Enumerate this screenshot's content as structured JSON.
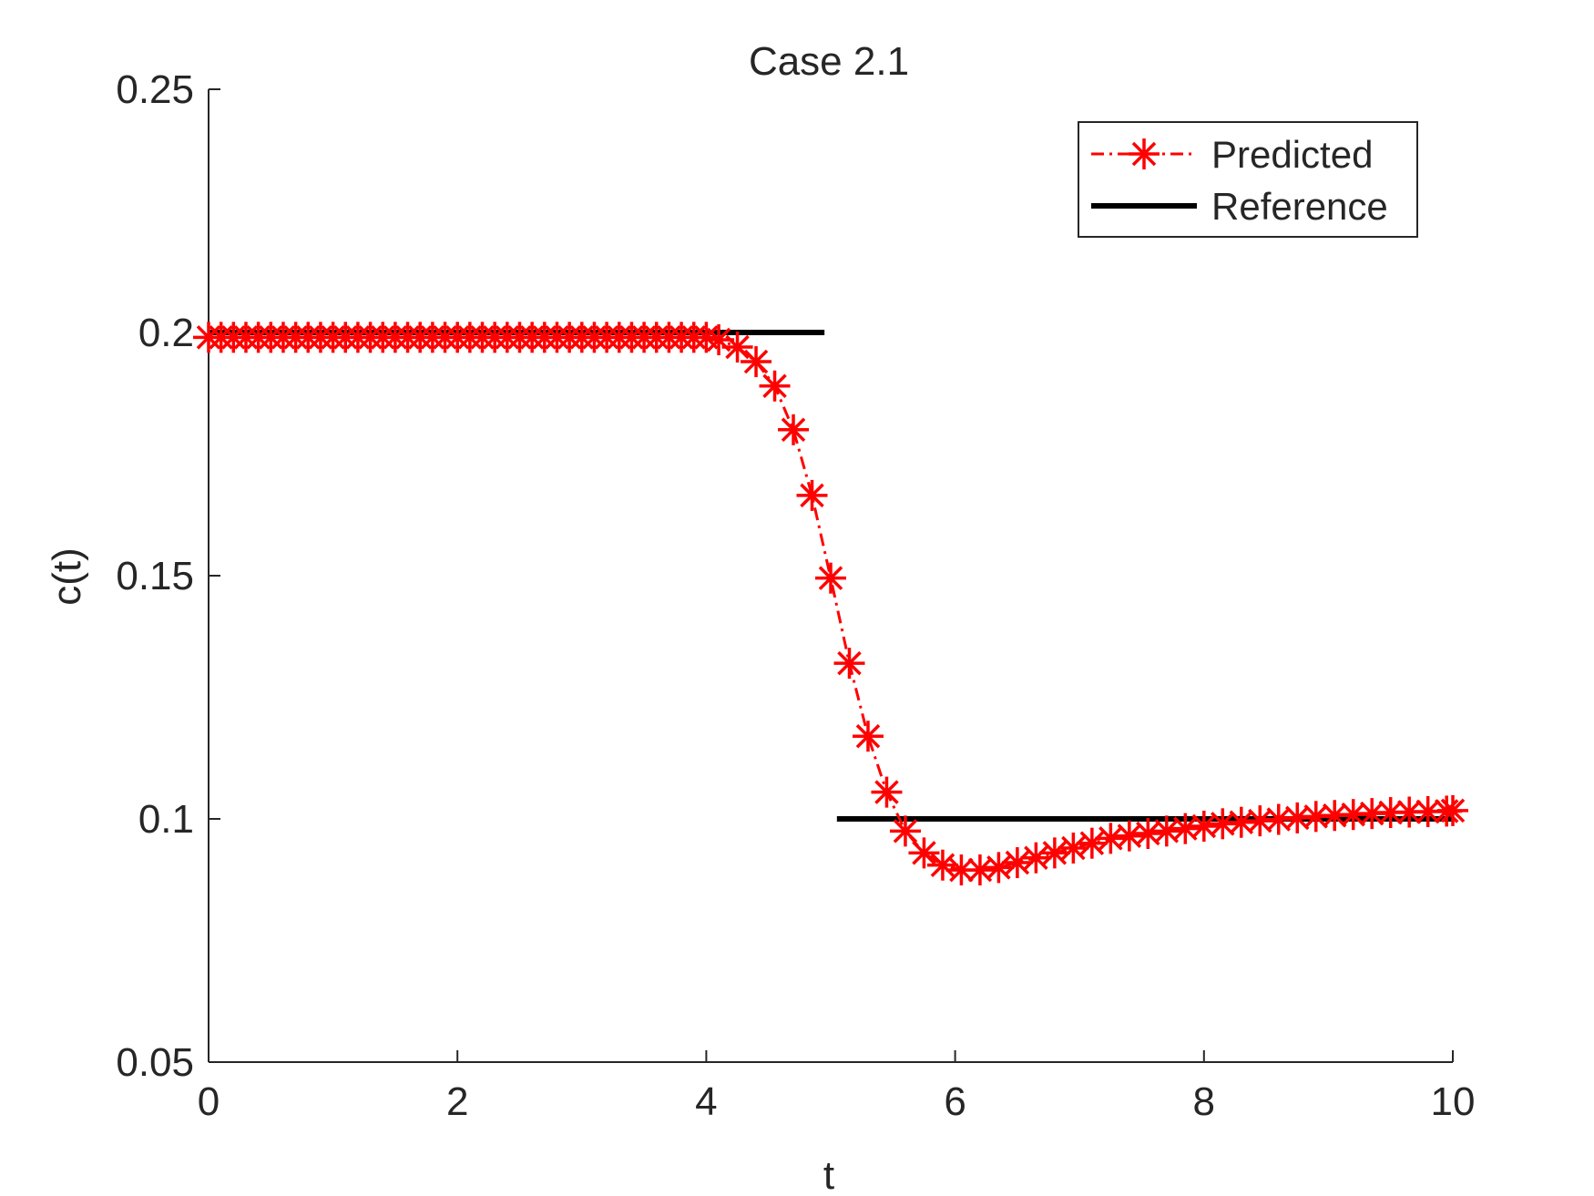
{
  "chart_data": {
    "type": "line",
    "title": "Case 2.1",
    "xlabel": "t",
    "ylabel": "c(t)",
    "xlim": [
      0,
      10
    ],
    "ylim": [
      0.05,
      0.25
    ],
    "xticks": [
      0,
      2,
      4,
      6,
      8,
      10
    ],
    "xtick_labels": [
      "0",
      "2",
      "4",
      "6",
      "8",
      "10"
    ],
    "yticks": [
      0.05,
      0.1,
      0.15,
      0.2,
      0.25
    ],
    "ytick_labels": [
      "0.05",
      "0.1",
      "0.15",
      "0.2",
      "0.25"
    ],
    "grid": false,
    "legend_position": "top-right",
    "series": [
      {
        "name": "Predicted",
        "color": "#ff0000",
        "line_style": "dash-dot",
        "marker": "asterisk",
        "x": [
          0,
          0.1,
          0.2,
          0.3,
          0.4,
          0.5,
          0.6,
          0.7,
          0.8,
          0.9,
          1.0,
          1.1,
          1.2,
          1.3,
          1.4,
          1.5,
          1.6,
          1.7,
          1.8,
          1.9,
          2.0,
          2.1,
          2.2,
          2.3,
          2.4,
          2.5,
          2.6,
          2.7,
          2.8,
          2.9,
          3.0,
          3.1,
          3.2,
          3.3,
          3.4,
          3.5,
          3.6,
          3.7,
          3.8,
          3.9,
          4.0,
          4.1,
          4.25,
          4.4,
          4.55,
          4.7,
          4.85,
          5.0,
          5.15,
          5.3,
          5.45,
          5.6,
          5.75,
          5.9,
          6.05,
          6.2,
          6.35,
          6.5,
          6.65,
          6.8,
          6.95,
          7.1,
          7.25,
          7.4,
          7.55,
          7.7,
          7.85,
          8.0,
          8.15,
          8.3,
          8.45,
          8.6,
          8.75,
          8.9,
          9.05,
          9.2,
          9.35,
          9.5,
          9.65,
          9.8,
          9.95,
          10.0
        ],
        "y": [
          0.199,
          0.199,
          0.199,
          0.199,
          0.199,
          0.199,
          0.199,
          0.199,
          0.199,
          0.199,
          0.199,
          0.199,
          0.199,
          0.199,
          0.199,
          0.199,
          0.199,
          0.199,
          0.199,
          0.199,
          0.199,
          0.199,
          0.199,
          0.199,
          0.199,
          0.199,
          0.199,
          0.199,
          0.199,
          0.199,
          0.199,
          0.199,
          0.199,
          0.199,
          0.199,
          0.199,
          0.199,
          0.199,
          0.199,
          0.199,
          0.199,
          0.1985,
          0.197,
          0.194,
          0.189,
          0.18,
          0.1665,
          0.1495,
          0.132,
          0.117,
          0.1055,
          0.0975,
          0.093,
          0.0905,
          0.0895,
          0.0895,
          0.09,
          0.091,
          0.092,
          0.093,
          0.094,
          0.095,
          0.096,
          0.0965,
          0.097,
          0.0975,
          0.098,
          0.0985,
          0.099,
          0.0993,
          0.0996,
          0.0999,
          0.1002,
          0.1005,
          0.1007,
          0.1009,
          0.1011,
          0.1013,
          0.1014,
          0.1015,
          0.1016,
          0.1017
        ]
      },
      {
        "name": "Reference",
        "color": "#000000",
        "line_style": "solid",
        "segments": [
          {
            "x": [
              0,
              4.95
            ],
            "y": [
              0.2,
              0.2
            ]
          },
          {
            "x": [
              5.05,
              10
            ],
            "y": [
              0.1,
              0.1
            ]
          }
        ]
      }
    ]
  }
}
